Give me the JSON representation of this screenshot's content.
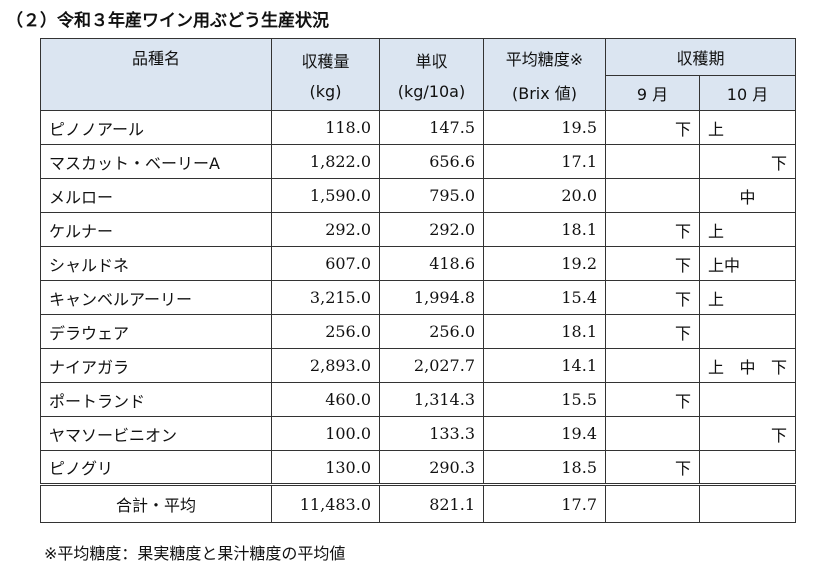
{
  "title": "（２）令和３年産ワイン用ぶどう生産状況",
  "headers": {
    "variety": "品種名",
    "harvest_qty": "収穫量",
    "harvest_qty_unit": "(kg)",
    "yield": "単収",
    "yield_unit": "(kg/10a)",
    "brix": "平均糖度※",
    "brix_unit": "(Brix 値)",
    "period": "収穫期",
    "sep": "9 月",
    "oct": "10 月"
  },
  "rows": [
    {
      "name": "ピノノアール",
      "qty": "118.0",
      "yield": "147.5",
      "brix": "19.5",
      "sep": "下",
      "oct": "上"
    },
    {
      "name": "マスカット・ベーリーA",
      "qty": "1,822.0",
      "yield": "656.6",
      "brix": "17.1",
      "sep": "",
      "oct": "下"
    },
    {
      "name": "メルロー",
      "qty": "1,590.0",
      "yield": "795.0",
      "brix": "20.0",
      "sep": "",
      "oct": "中"
    },
    {
      "name": "ケルナー",
      "qty": "292.0",
      "yield": "292.0",
      "brix": "18.1",
      "sep": "下",
      "oct": "上"
    },
    {
      "name": "シャルドネ",
      "qty": "607.0",
      "yield": "418.6",
      "brix": "19.2",
      "sep": "下",
      "oct": "上中"
    },
    {
      "name": "キャンベルアーリー",
      "qty": "3,215.0",
      "yield": "1,994.8",
      "brix": "15.4",
      "sep": "下",
      "oct": "上"
    },
    {
      "name": "デラウェア",
      "qty": "256.0",
      "yield": "256.0",
      "brix": "18.1",
      "sep": "下",
      "oct": ""
    },
    {
      "name": "ナイアガラ",
      "qty": "2,893.0",
      "yield": "2,027.7",
      "brix": "14.1",
      "sep": "",
      "oct": "上 中 下"
    },
    {
      "name": "ポートランド",
      "qty": "460.0",
      "yield": "1,314.3",
      "brix": "15.5",
      "sep": "下",
      "oct": ""
    },
    {
      "name": "ヤマソービニオン",
      "qty": "100.0",
      "yield": "133.3",
      "brix": "19.4",
      "sep": "",
      "oct": "下"
    },
    {
      "name": "ピノグリ",
      "qty": "130.0",
      "yield": "290.3",
      "brix": "18.5",
      "sep": "下",
      "oct": ""
    }
  ],
  "total": {
    "label": "合計・平均",
    "qty": "11,483.0",
    "yield": "821.1",
    "brix": "17.7"
  },
  "footnote": "※平均糖度：果実糖度と果汁糖度の平均値"
}
